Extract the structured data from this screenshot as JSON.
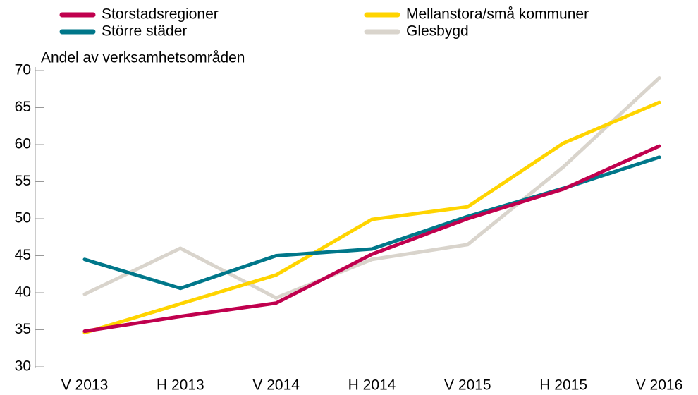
{
  "chart_data": {
    "type": "line",
    "y_axis_label": "Andel av verksamhetsområden",
    "categories": [
      "V 2013",
      "H 2013",
      "V 2014",
      "H 2014",
      "V 2015",
      "H 2015",
      "V 2016"
    ],
    "series": [
      {
        "name": "Storstadsregioner",
        "color": "#c0004e",
        "values": [
          34.8,
          36.8,
          38.6,
          45.2,
          50.0,
          54.0,
          59.8
        ]
      },
      {
        "name": "Större städer",
        "color": "#00778a",
        "values": [
          44.5,
          40.6,
          45.0,
          45.9,
          50.3,
          54.1,
          58.3
        ]
      },
      {
        "name": "Mellanstora/små kommuner",
        "color": "#ffd400",
        "values": [
          34.6,
          38.5,
          42.4,
          49.9,
          51.6,
          60.2,
          65.7
        ]
      },
      {
        "name": "Glesbygd",
        "color": "#d9d4cc",
        "values": [
          39.8,
          46.0,
          39.3,
          44.5,
          46.5,
          57.0,
          69.0
        ]
      }
    ],
    "ylim": [
      30,
      70
    ],
    "yticks": [
      30,
      35,
      40,
      45,
      50,
      55,
      60,
      65,
      70
    ],
    "grid": false
  }
}
